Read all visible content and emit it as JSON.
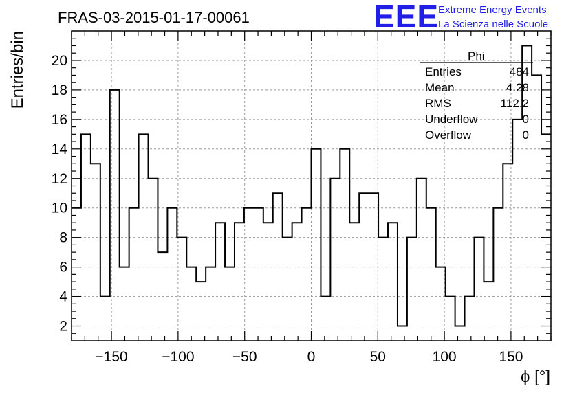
{
  "header": {
    "title": "FRAS-03-2015-01-17-00061",
    "logo_text": "EEE",
    "logo_line1": "Extreme Energy Events",
    "logo_line2": "La Scienza nelle Scuole"
  },
  "stats_box": {
    "name": "Phi",
    "rows": [
      {
        "label": "Entries",
        "value": "484"
      },
      {
        "label": "Mean",
        "value": "4.28"
      },
      {
        "label": "RMS",
        "value": "112.2"
      },
      {
        "label": "Underflow",
        "value": "0"
      },
      {
        "label": "Overflow",
        "value": "0"
      }
    ]
  },
  "chart_data": {
    "type": "histogram",
    "title": "FRAS-03-2015-01-17-00061",
    "xlabel": "ϕ [°]",
    "ylabel": "Entries/bin",
    "xlim": [
      -180,
      180
    ],
    "ylim": [
      1,
      22
    ],
    "grid": true,
    "bin_edges": [
      -180,
      -172.8,
      -165.6,
      -158.4,
      -151.2,
      -144,
      -136.8,
      -129.6,
      -122.4,
      -115.2,
      -108,
      -100.8,
      -93.6,
      -86.4,
      -79.2,
      -72,
      -64.8,
      -57.6,
      -50.4,
      -43.2,
      -36,
      -28.8,
      -21.6,
      -14.4,
      -7.2,
      0,
      7.2,
      14.4,
      21.6,
      28.8,
      36,
      43.2,
      50.4,
      57.6,
      64.8,
      72,
      79.2,
      86.4,
      93.6,
      100.8,
      108,
      115.2,
      122.4,
      129.6,
      136.8,
      144,
      151.2,
      158.4,
      165.6,
      172.8,
      180
    ],
    "values": [
      10,
      15,
      13,
      4,
      18,
      6,
      10,
      15,
      12,
      7,
      10,
      8,
      6,
      5,
      6,
      9,
      6,
      9,
      10,
      10,
      9,
      11,
      8,
      9,
      10,
      14,
      4,
      12,
      14,
      9,
      11,
      11,
      8,
      9,
      2,
      8,
      12,
      10,
      6,
      4,
      2,
      4,
      8,
      5,
      10,
      13,
      16,
      21,
      19,
      15
    ],
    "x_ticks": [
      -150,
      -100,
      -50,
      0,
      50,
      100,
      150
    ],
    "x_tick_labels": [
      "−150",
      "−100",
      "−50",
      "0",
      "50",
      "100",
      "150"
    ],
    "y_ticks": [
      2,
      4,
      6,
      8,
      10,
      12,
      14,
      16,
      18,
      20
    ],
    "y_tick_labels": [
      "2",
      "4",
      "6",
      "8",
      "10",
      "12",
      "14",
      "16",
      "18",
      "20"
    ]
  }
}
